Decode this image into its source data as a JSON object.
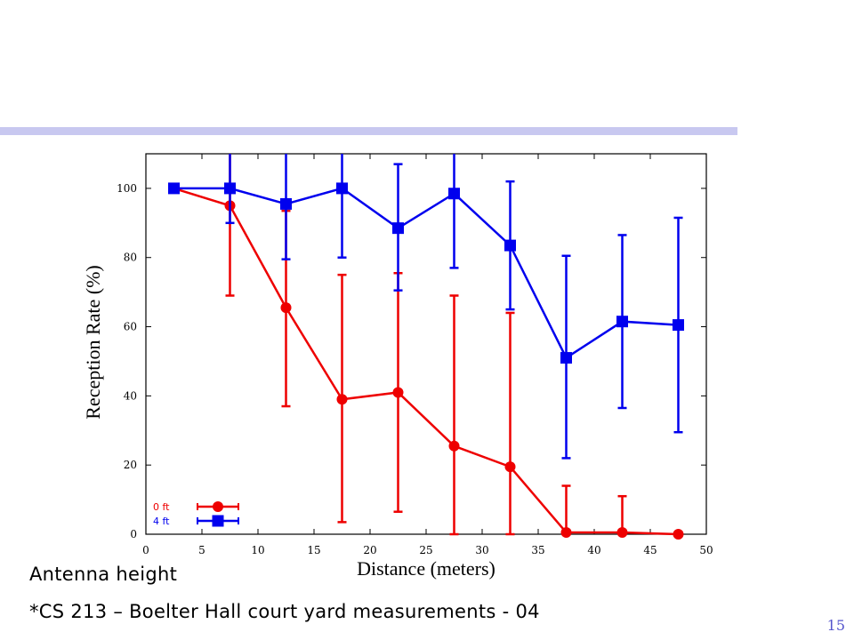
{
  "colors": {
    "accent_bar": "#c8c8f0",
    "series_red": "#ee0000",
    "series_blue": "#0000ee",
    "page_number": "#5555cc"
  },
  "chart_data": {
    "type": "line",
    "xlabel": "Distance (meters)",
    "ylabel": "Reception Rate (%)",
    "xlim": [
      0,
      50
    ],
    "ylim": [
      0,
      110
    ],
    "xticks": [
      0,
      5,
      10,
      15,
      20,
      25,
      30,
      35,
      40,
      45,
      50
    ],
    "yticks": [
      0,
      20,
      40,
      60,
      80,
      100
    ],
    "grid": false,
    "legend_position": "bottom-left",
    "error_bars": true,
    "series": [
      {
        "name": "0 ft",
        "color": "#ee0000",
        "marker": "circle",
        "x": [
          7.5,
          12.5,
          17.5,
          22.5,
          27.5,
          32.5,
          37.5,
          42.5,
          47.5
        ],
        "y": [
          95,
          65.5,
          39,
          41,
          25.5,
          19.5,
          0.5,
          0.5,
          0
        ],
        "err_low": [
          69,
          37,
          3.5,
          6.5,
          0,
          0,
          0,
          0,
          0
        ],
        "err_high": [
          110,
          93.5,
          75,
          75.5,
          69,
          64,
          14,
          11,
          0
        ]
      },
      {
        "name": "4 ft",
        "color": "#0000ee",
        "marker": "square",
        "x": [
          2.5,
          7.5,
          12.5,
          17.5,
          22.5,
          27.5,
          32.5,
          37.5,
          42.5,
          47.5
        ],
        "y": [
          100,
          100,
          95.5,
          100,
          88.5,
          98.5,
          83.5,
          51,
          61.5,
          60.5
        ],
        "err_low": [
          100,
          90,
          79.5,
          80,
          70.5,
          77,
          65,
          22,
          36.5,
          29.5
        ],
        "err_high": [
          100,
          110,
          110,
          110,
          107,
          110,
          102,
          80.5,
          86.5,
          91.5
        ]
      }
    ]
  },
  "captions": {
    "line1": "Antenna height",
    "line2": "*CS 213 – Boelter Hall court yard measurements - 04"
  },
  "page_number": "15"
}
